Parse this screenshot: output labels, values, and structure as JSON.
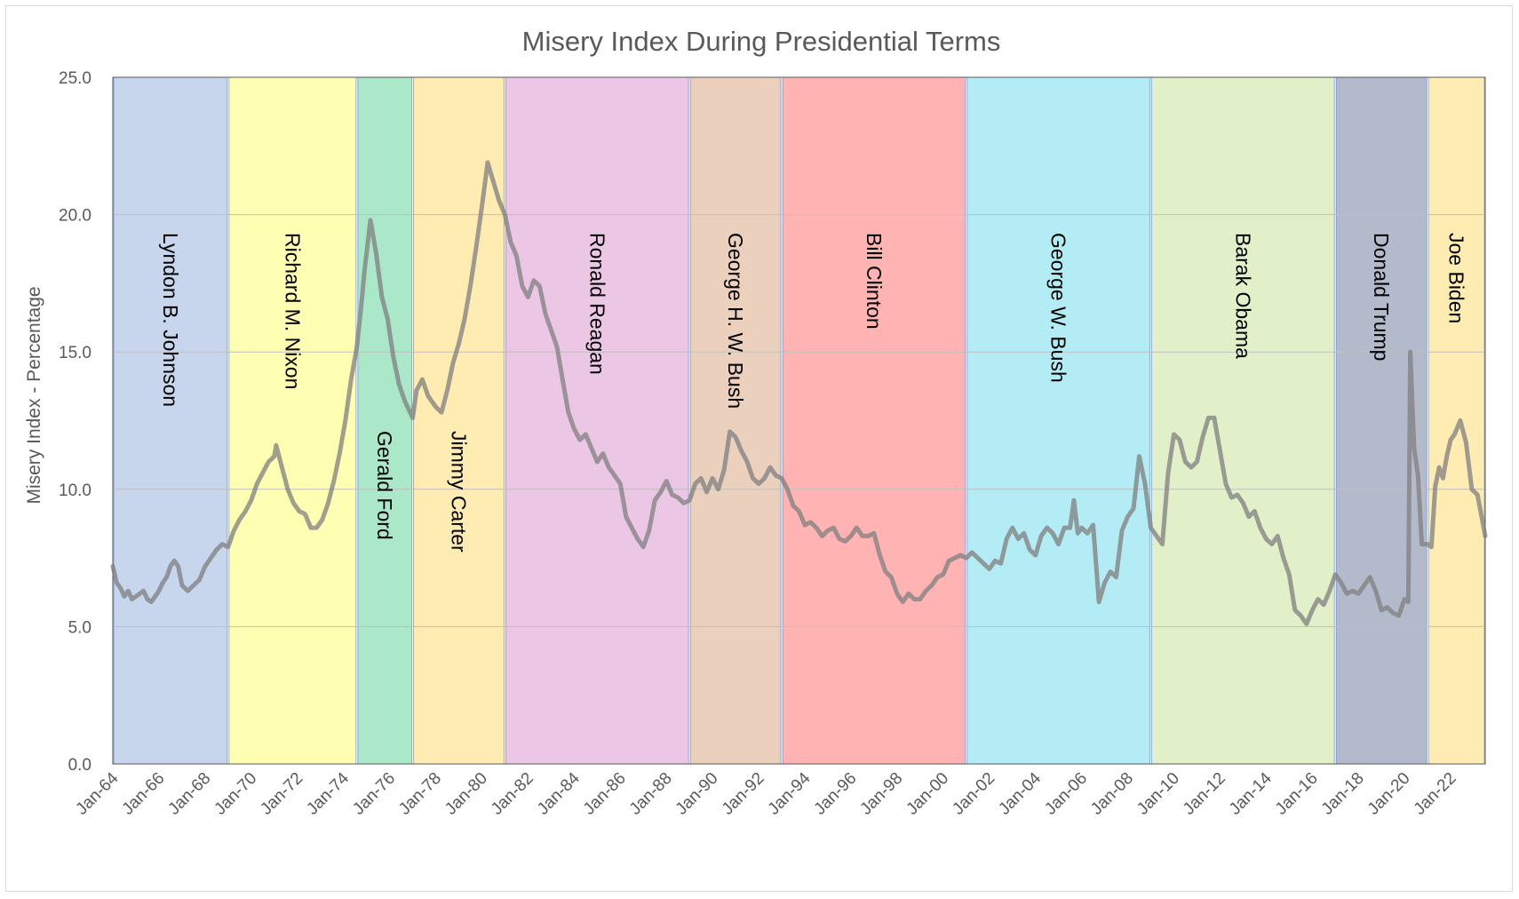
{
  "chart_data": {
    "type": "line",
    "title": "Misery Index During Presidential Terms",
    "xlabel": "",
    "ylabel": "Misery Index - Percentage",
    "ylim": [
      0,
      25
    ],
    "xlim": [
      "1964-01",
      "2023-07"
    ],
    "y_ticks": [
      "0.0",
      "5.0",
      "10.0",
      "15.0",
      "20.0",
      "25.0"
    ],
    "x_ticks": [
      "Jan-64",
      "Jan-66",
      "Jan-68",
      "Jan-70",
      "Jan-72",
      "Jan-74",
      "Jan-76",
      "Jan-78",
      "Jan-80",
      "Jan-82",
      "Jan-84",
      "Jan-86",
      "Jan-88",
      "Jan-90",
      "Jan-92",
      "Jan-94",
      "Jan-96",
      "Jan-98",
      "Jan-00",
      "Jan-02",
      "Jan-04",
      "Jan-06",
      "Jan-08",
      "Jan-10",
      "Jan-12",
      "Jan-14",
      "Jan-16",
      "Jan-18",
      "Jan-20",
      "Jan-22"
    ],
    "grid": true,
    "legend": "none",
    "line_color": "#7f7f7f",
    "terms": [
      {
        "name": "Lyndon B. Johnson",
        "start": "1964-01",
        "end": "1969-01",
        "color": "#b4c7e7"
      },
      {
        "name": "Richard M. Nixon",
        "start": "1969-01",
        "end": "1974-08",
        "color": "#ffff99"
      },
      {
        "name": "Gerald Ford",
        "start": "1974-08",
        "end": "1977-01",
        "color": "#8fe0b8"
      },
      {
        "name": "Jimmy Carter",
        "start": "1977-01",
        "end": "1981-01",
        "color": "#ffe699"
      },
      {
        "name": "Ronald Reagan",
        "start": "1981-01",
        "end": "1989-01",
        "color": "#e6b3dc"
      },
      {
        "name": "George H. W. Bush",
        "start": "1989-01",
        "end": "1993-01",
        "color": "#e6c0a8"
      },
      {
        "name": "Bill Clinton",
        "start": "1993-01",
        "end": "2001-01",
        "color": "#ff9999"
      },
      {
        "name": "George W. Bush",
        "start": "2001-01",
        "end": "2009-01",
        "color": "#99e6f0"
      },
      {
        "name": "Barak Obama",
        "start": "2009-01",
        "end": "2017-01",
        "color": "#d8ebb8"
      },
      {
        "name": "Donald Trump",
        "start": "2017-01",
        "end": "2021-01",
        "color": "#99a3bb"
      },
      {
        "name": "Joe Biden",
        "start": "2021-01",
        "end": "2023-07",
        "color": "#ffe699"
      }
    ],
    "series": [
      {
        "points": [
          [
            "1964-01",
            7.2
          ],
          [
            "1964-03",
            6.6
          ],
          [
            "1964-05",
            6.4
          ],
          [
            "1964-07",
            6.1
          ],
          [
            "1964-09",
            6.3
          ],
          [
            "1964-11",
            6.0
          ],
          [
            "1965-01",
            6.1
          ],
          [
            "1965-03",
            6.2
          ],
          [
            "1965-05",
            6.3
          ],
          [
            "1965-07",
            6.0
          ],
          [
            "1965-09",
            5.9
          ],
          [
            "1965-11",
            6.1
          ],
          [
            "1966-01",
            6.3
          ],
          [
            "1966-03",
            6.6
          ],
          [
            "1966-05",
            6.8
          ],
          [
            "1966-07",
            7.2
          ],
          [
            "1966-09",
            7.4
          ],
          [
            "1966-11",
            7.2
          ],
          [
            "1967-01",
            6.5
          ],
          [
            "1967-04",
            6.3
          ],
          [
            "1967-07",
            6.5
          ],
          [
            "1967-10",
            6.7
          ],
          [
            "1968-01",
            7.2
          ],
          [
            "1968-04",
            7.5
          ],
          [
            "1968-07",
            7.8
          ],
          [
            "1968-10",
            8.0
          ],
          [
            "1969-01",
            7.9
          ],
          [
            "1969-04",
            8.5
          ],
          [
            "1969-07",
            8.9
          ],
          [
            "1969-10",
            9.2
          ],
          [
            "1970-01",
            9.6
          ],
          [
            "1970-04",
            10.2
          ],
          [
            "1970-07",
            10.6
          ],
          [
            "1970-10",
            11.0
          ],
          [
            "1971-01",
            11.2
          ],
          [
            "1971-02",
            11.6
          ],
          [
            "1971-05",
            10.8
          ],
          [
            "1971-08",
            10.0
          ],
          [
            "1971-11",
            9.5
          ],
          [
            "1972-02",
            9.2
          ],
          [
            "1972-05",
            9.1
          ],
          [
            "1972-08",
            8.6
          ],
          [
            "1972-11",
            8.6
          ],
          [
            "1973-02",
            8.9
          ],
          [
            "1973-05",
            9.5
          ],
          [
            "1973-08",
            10.3
          ],
          [
            "1973-11",
            11.3
          ],
          [
            "1974-02",
            12.5
          ],
          [
            "1974-05",
            14.0
          ],
          [
            "1974-08",
            15.2
          ],
          [
            "1974-10",
            16.5
          ],
          [
            "1974-12",
            18.0
          ],
          [
            "1975-03",
            19.8
          ],
          [
            "1975-06",
            18.6
          ],
          [
            "1975-09",
            17.0
          ],
          [
            "1975-12",
            16.2
          ],
          [
            "1976-03",
            14.8
          ],
          [
            "1976-06",
            13.8
          ],
          [
            "1976-09",
            13.2
          ],
          [
            "1977-01",
            12.6
          ],
          [
            "1977-03",
            13.6
          ],
          [
            "1977-06",
            14.0
          ],
          [
            "1977-09",
            13.4
          ],
          [
            "1978-01",
            13.0
          ],
          [
            "1978-04",
            12.8
          ],
          [
            "1978-07",
            13.6
          ],
          [
            "1978-10",
            14.6
          ],
          [
            "1979-01",
            15.3
          ],
          [
            "1979-04",
            16.2
          ],
          [
            "1979-07",
            17.4
          ],
          [
            "1979-10",
            18.8
          ],
          [
            "1980-01",
            20.3
          ],
          [
            "1980-04",
            21.9
          ],
          [
            "1980-07",
            21.2
          ],
          [
            "1980-10",
            20.5
          ],
          [
            "1981-01",
            20.0
          ],
          [
            "1981-04",
            19.0
          ],
          [
            "1981-07",
            18.5
          ],
          [
            "1981-10",
            17.4
          ],
          [
            "1982-01",
            17.0
          ],
          [
            "1982-04",
            17.6
          ],
          [
            "1982-07",
            17.4
          ],
          [
            "1982-10",
            16.4
          ],
          [
            "1983-01",
            15.8
          ],
          [
            "1983-04",
            15.2
          ],
          [
            "1983-07",
            14.0
          ],
          [
            "1983-10",
            12.8
          ],
          [
            "1984-01",
            12.2
          ],
          [
            "1984-04",
            11.8
          ],
          [
            "1984-07",
            12.0
          ],
          [
            "1984-10",
            11.5
          ],
          [
            "1985-01",
            11.0
          ],
          [
            "1985-04",
            11.3
          ],
          [
            "1985-07",
            10.8
          ],
          [
            "1985-10",
            10.5
          ],
          [
            "1986-01",
            10.2
          ],
          [
            "1986-04",
            9.0
          ],
          [
            "1986-07",
            8.6
          ],
          [
            "1986-10",
            8.2
          ],
          [
            "1987-01",
            7.9
          ],
          [
            "1987-04",
            8.5
          ],
          [
            "1987-07",
            9.6
          ],
          [
            "1987-10",
            9.9
          ],
          [
            "1988-01",
            10.3
          ],
          [
            "1988-04",
            9.8
          ],
          [
            "1988-07",
            9.7
          ],
          [
            "1988-10",
            9.5
          ],
          [
            "1989-01",
            9.6
          ],
          [
            "1989-04",
            10.2
          ],
          [
            "1989-07",
            10.4
          ],
          [
            "1989-10",
            9.9
          ],
          [
            "1990-01",
            10.4
          ],
          [
            "1990-04",
            10.0
          ],
          [
            "1990-07",
            10.7
          ],
          [
            "1990-10",
            12.1
          ],
          [
            "1991-01",
            11.9
          ],
          [
            "1991-04",
            11.4
          ],
          [
            "1991-07",
            11.0
          ],
          [
            "1991-10",
            10.4
          ],
          [
            "1992-01",
            10.2
          ],
          [
            "1992-04",
            10.4
          ],
          [
            "1992-07",
            10.8
          ],
          [
            "1992-10",
            10.5
          ],
          [
            "1993-01",
            10.4
          ],
          [
            "1993-04",
            10.0
          ],
          [
            "1993-07",
            9.4
          ],
          [
            "1993-10",
            9.2
          ],
          [
            "1994-01",
            8.7
          ],
          [
            "1994-04",
            8.8
          ],
          [
            "1994-07",
            8.6
          ],
          [
            "1994-10",
            8.3
          ],
          [
            "1995-01",
            8.5
          ],
          [
            "1995-04",
            8.6
          ],
          [
            "1995-07",
            8.2
          ],
          [
            "1995-10",
            8.1
          ],
          [
            "1996-01",
            8.3
          ],
          [
            "1996-04",
            8.6
          ],
          [
            "1996-07",
            8.3
          ],
          [
            "1996-10",
            8.3
          ],
          [
            "1997-01",
            8.4
          ],
          [
            "1997-04",
            7.6
          ],
          [
            "1997-07",
            7.0
          ],
          [
            "1997-10",
            6.8
          ],
          [
            "1998-01",
            6.2
          ],
          [
            "1998-04",
            5.9
          ],
          [
            "1998-07",
            6.2
          ],
          [
            "1998-10",
            6.0
          ],
          [
            "1999-01",
            6.0
          ],
          [
            "1999-04",
            6.3
          ],
          [
            "1999-07",
            6.5
          ],
          [
            "1999-10",
            6.8
          ],
          [
            "2000-01",
            6.9
          ],
          [
            "2000-04",
            7.4
          ],
          [
            "2000-07",
            7.5
          ],
          [
            "2000-10",
            7.6
          ],
          [
            "2001-01",
            7.5
          ],
          [
            "2001-04",
            7.7
          ],
          [
            "2001-07",
            7.5
          ],
          [
            "2001-10",
            7.3
          ],
          [
            "2002-01",
            7.1
          ],
          [
            "2002-04",
            7.4
          ],
          [
            "2002-07",
            7.3
          ],
          [
            "2002-10",
            8.2
          ],
          [
            "2003-01",
            8.6
          ],
          [
            "2003-04",
            8.2
          ],
          [
            "2003-07",
            8.4
          ],
          [
            "2003-10",
            7.8
          ],
          [
            "2004-01",
            7.6
          ],
          [
            "2004-04",
            8.3
          ],
          [
            "2004-07",
            8.6
          ],
          [
            "2004-10",
            8.4
          ],
          [
            "2005-01",
            8.0
          ],
          [
            "2005-04",
            8.6
          ],
          [
            "2005-07",
            8.6
          ],
          [
            "2005-09",
            9.6
          ],
          [
            "2005-11",
            8.4
          ],
          [
            "2006-01",
            8.6
          ],
          [
            "2006-04",
            8.4
          ],
          [
            "2006-07",
            8.7
          ],
          [
            "2006-10",
            5.9
          ],
          [
            "2007-01",
            6.6
          ],
          [
            "2007-04",
            7.0
          ],
          [
            "2007-07",
            6.8
          ],
          [
            "2007-10",
            8.5
          ],
          [
            "2008-01",
            9.0
          ],
          [
            "2008-04",
            9.3
          ],
          [
            "2008-07",
            11.2
          ],
          [
            "2008-10",
            10.2
          ],
          [
            "2009-01",
            8.6
          ],
          [
            "2009-04",
            8.3
          ],
          [
            "2009-07",
            8.0
          ],
          [
            "2009-10",
            10.6
          ],
          [
            "2010-01",
            12.0
          ],
          [
            "2010-04",
            11.8
          ],
          [
            "2010-07",
            11.0
          ],
          [
            "2010-10",
            10.8
          ],
          [
            "2011-01",
            11.0
          ],
          [
            "2011-04",
            11.9
          ],
          [
            "2011-07",
            12.6
          ],
          [
            "2011-10",
            12.6
          ],
          [
            "2012-01",
            11.4
          ],
          [
            "2012-04",
            10.2
          ],
          [
            "2012-07",
            9.7
          ],
          [
            "2012-10",
            9.8
          ],
          [
            "2013-01",
            9.5
          ],
          [
            "2013-04",
            9.0
          ],
          [
            "2013-07",
            9.2
          ],
          [
            "2013-10",
            8.6
          ],
          [
            "2014-01",
            8.2
          ],
          [
            "2014-04",
            8.0
          ],
          [
            "2014-07",
            8.3
          ],
          [
            "2014-10",
            7.5
          ],
          [
            "2015-01",
            6.9
          ],
          [
            "2015-04",
            5.6
          ],
          [
            "2015-07",
            5.4
          ],
          [
            "2015-10",
            5.1
          ],
          [
            "2016-01",
            5.6
          ],
          [
            "2016-04",
            6.0
          ],
          [
            "2016-07",
            5.8
          ],
          [
            "2016-10",
            6.3
          ],
          [
            "2017-01",
            6.9
          ],
          [
            "2017-04",
            6.6
          ],
          [
            "2017-07",
            6.2
          ],
          [
            "2017-10",
            6.3
          ],
          [
            "2018-01",
            6.2
          ],
          [
            "2018-04",
            6.5
          ],
          [
            "2018-07",
            6.8
          ],
          [
            "2018-10",
            6.3
          ],
          [
            "2019-01",
            5.6
          ],
          [
            "2019-04",
            5.7
          ],
          [
            "2019-07",
            5.5
          ],
          [
            "2019-10",
            5.4
          ],
          [
            "2020-01",
            6.0
          ],
          [
            "2020-03",
            5.9
          ],
          [
            "2020-04",
            15.0
          ],
          [
            "2020-06",
            11.5
          ],
          [
            "2020-08",
            10.5
          ],
          [
            "2020-10",
            8.0
          ],
          [
            "2021-01",
            8.0
          ],
          [
            "2021-03",
            7.9
          ],
          [
            "2021-05",
            10.1
          ],
          [
            "2021-07",
            10.8
          ],
          [
            "2021-09",
            10.4
          ],
          [
            "2021-11",
            11.2
          ],
          [
            "2022-01",
            11.8
          ],
          [
            "2022-03",
            12.0
          ],
          [
            "2022-06",
            12.5
          ],
          [
            "2022-09",
            11.7
          ],
          [
            "2022-12",
            10.0
          ],
          [
            "2023-03",
            9.8
          ],
          [
            "2023-07",
            8.3
          ]
        ]
      }
    ]
  }
}
